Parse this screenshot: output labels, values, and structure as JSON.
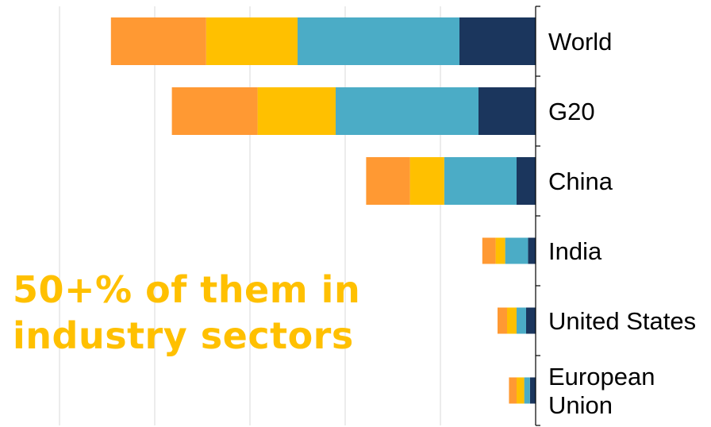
{
  "chart_data": {
    "type": "bar",
    "orientation": "horizontal",
    "stacked": true,
    "direction": "leftward",
    "categories": [
      "World",
      "G20",
      "China",
      "India",
      "United States",
      "European Union"
    ],
    "category_lines": [
      [
        "World"
      ],
      [
        "G20"
      ],
      [
        "China"
      ],
      [
        "India"
      ],
      [
        "United States"
      ],
      [
        "European",
        "Union"
      ]
    ],
    "series": [
      {
        "color": "#1B365D",
        "values": [
          0.4,
          0.3,
          0.1,
          0.04,
          0.05,
          0.03
        ]
      },
      {
        "color": "#4BACC6",
        "values": [
          0.85,
          0.75,
          0.38,
          0.12,
          0.05,
          0.03
        ]
      },
      {
        "color": "#FFC000",
        "values": [
          0.48,
          0.41,
          0.18,
          0.05,
          0.05,
          0.04
        ]
      },
      {
        "color": "#FF9933",
        "values": [
          0.5,
          0.45,
          0.23,
          0.07,
          0.05,
          0.04
        ]
      }
    ],
    "xlim": [
      0,
      2.5
    ],
    "grid": true,
    "annotation": [
      "50+% of them in",
      "industry sectors"
    ],
    "annotation_color": "#FFC000"
  }
}
